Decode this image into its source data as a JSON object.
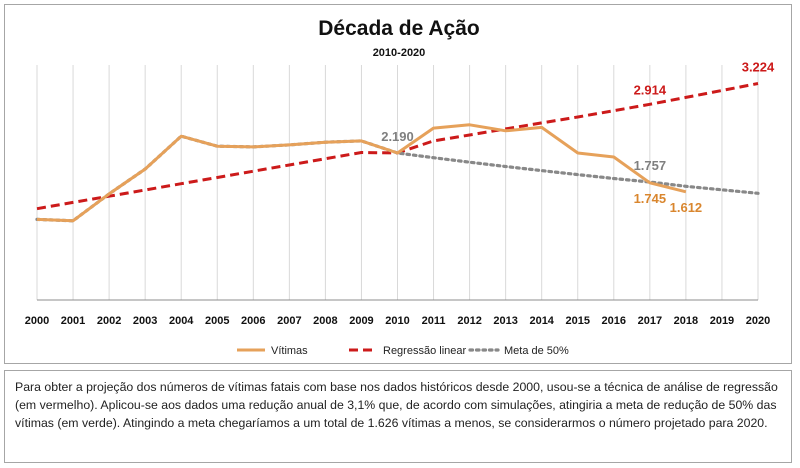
{
  "chart_data": {
    "type": "line",
    "title": "Década de Ação",
    "subtitle": "2010-2020",
    "xlabel": "",
    "ylabel": "",
    "x": [
      2000,
      2001,
      2002,
      2003,
      2004,
      2005,
      2006,
      2007,
      2008,
      2009,
      2010,
      2011,
      2012,
      2013,
      2014,
      2015,
      2016,
      2017,
      2018,
      2019,
      2020
    ],
    "ylim": [
      0,
      3500
    ],
    "grid": "vertical",
    "legend": "bottom",
    "series": [
      {
        "name": "Vítimas",
        "style": "solid",
        "color": "#e6a15a",
        "values": [
          1200,
          1180,
          1580,
          1950,
          2440,
          2290,
          2280,
          2310,
          2350,
          2370,
          2190,
          2560,
          2610,
          2520,
          2570,
          2190,
          2130,
          1745,
          1612,
          null,
          null
        ]
      },
      {
        "name": "Regressão linear",
        "style": "dashed",
        "color": "#cc1a1a",
        "values": [
          1360,
          1453,
          1546,
          1639,
          1732,
          1825,
          1918,
          2011,
          2104,
          2197,
          2190,
          2369,
          2458,
          2548,
          2637,
          2726,
          2820,
          2914,
          3017,
          3120,
          3224
        ]
      },
      {
        "name": "Meta de 50%",
        "style": "dotted",
        "color": "#888888",
        "values": [
          1200,
          1180,
          1580,
          1950,
          2440,
          2290,
          2280,
          2310,
          2350,
          2370,
          2190,
          2119,
          2053,
          1989,
          1927,
          1867,
          1809,
          1757,
          1694,
          1641,
          1589
        ]
      }
    ],
    "annotations": [
      {
        "series": "Regressão linear",
        "x": 2010,
        "text": "2.190",
        "color": "#7f7f7f"
      },
      {
        "series": "Regressão linear",
        "x": 2017,
        "text": "2.914",
        "color": "#cc1a1a"
      },
      {
        "series": "Regressão linear",
        "x": 2020,
        "text": "3.224",
        "color": "#cc1a1a"
      },
      {
        "series": "Meta de 50%",
        "x": 2017,
        "text": "1.757",
        "color": "#7f7f7f"
      },
      {
        "series": "Vítimas",
        "x": 2017,
        "text": "1.745",
        "color": "#d9862e"
      },
      {
        "series": "Vítimas",
        "x": 2018,
        "text": "1.612",
        "color": "#d9862e"
      }
    ]
  },
  "note": {
    "text": "Para obter a projeção dos números de vítimas fatais com base nos dados históricos desde 2000, usou-se a técnica de análise de regressão (em vermelho). Aplicou-se aos dados uma redução anual de 3,1% que, de acordo com simulações, atingiria a meta de redução de 50% das vítimas (em verde). Atingindo a meta chegaríamos a um total de 1.626 vítimas a menos, se considerarmos o número projetado para 2020."
  }
}
